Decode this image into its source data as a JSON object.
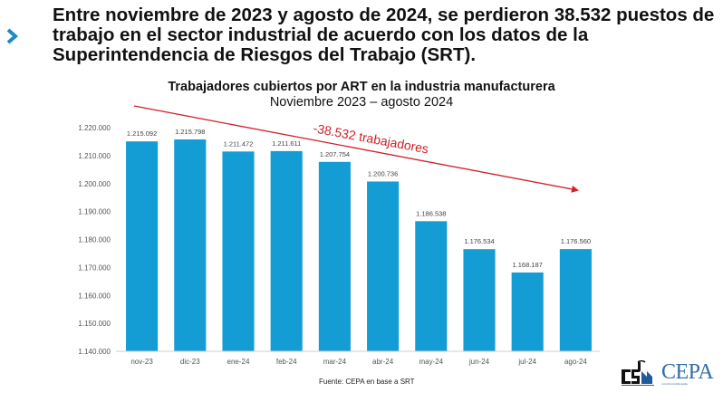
{
  "headline": {
    "text": "Entre noviembre de 2023 y agosto de 2024, se perdieron 38.532 puestos de trabajo en el sector industrial de acuerdo con los datos de la Superintendencia de Riesgos del Trabajo (SRT).",
    "bullet_icon": "chevron-right-icon",
    "bullet_color": "#1e88c8"
  },
  "source": "Fuente: CEPA en base a SRT",
  "logos": {
    "cs": "CS",
    "cepa": "CEPA",
    "cepa_tagline": "Centro de Economía Política Argentina"
  },
  "chart_data": {
    "type": "bar",
    "title": "Trabajadores cubiertos por ART en la industria manufacturera",
    "subtitle": "Noviembre 2023 – agosto 2024",
    "xlabel": "",
    "ylabel": "",
    "categories": [
      "nov-23",
      "dic-23",
      "ene-24",
      "feb-24",
      "mar-24",
      "abr-24",
      "may-24",
      "jun-24",
      "jul-24",
      "ago-24"
    ],
    "values": [
      1215092,
      1215798,
      1211472,
      1211611,
      1207754,
      1200736,
      1186538,
      1176534,
      1168187,
      1176560
    ],
    "value_labels": [
      "1.215.092",
      "1.215.798",
      "1.211.472",
      "1.211.611",
      "1.207.754",
      "1.200.736",
      "1.186.538",
      "1.176.534",
      "1.168.187",
      "1.176.560"
    ],
    "ylim": [
      1140000,
      1220000
    ],
    "yticks": [
      1140000,
      1150000,
      1160000,
      1170000,
      1180000,
      1190000,
      1200000,
      1210000,
      1220000
    ],
    "ytick_labels": [
      "1.140.000",
      "1.150.000",
      "1.160.000",
      "1.170.000",
      "1.180.000",
      "1.190.000",
      "1.200.000",
      "1.210.000",
      "1.220.000"
    ],
    "grid": false,
    "bar_color": "#139dd4",
    "annotation": {
      "text": "-38.532 trabajadores",
      "color": "#d0202a",
      "type": "downward-trend-arrow"
    }
  }
}
